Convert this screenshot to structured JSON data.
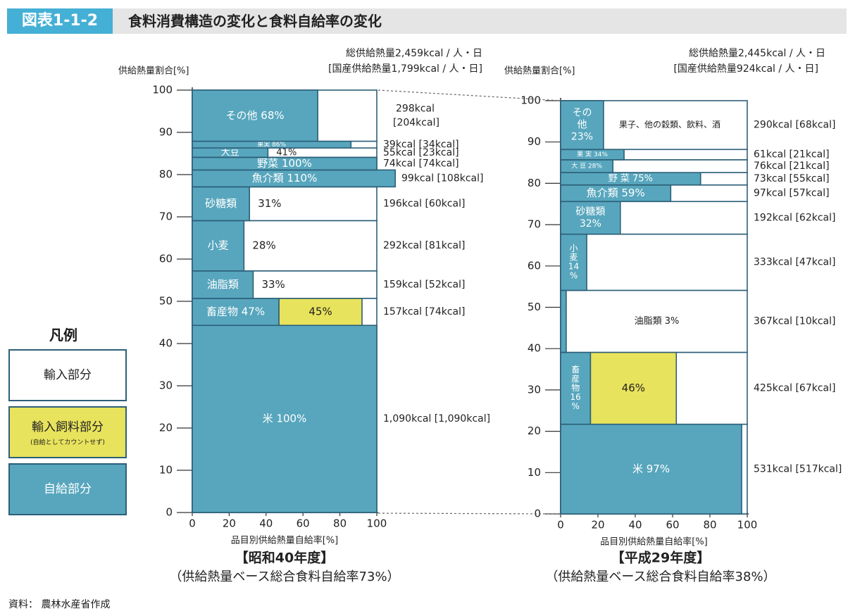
{
  "header": {
    "badge": "図表1-1-2",
    "title": "食料消費構造の変化と食料自給率の変化"
  },
  "legend": {
    "title": "凡例",
    "import_label": "輸入部分",
    "feed_label": "輸入飼料部分",
    "feed_note": "(自給としてカウントせず)",
    "self_label": "自給部分"
  },
  "source": "資料： 農林水産省作成",
  "colors": {
    "self": "#57a6bd",
    "feed": "#e8e35c",
    "import": "#ffffff",
    "border": "#2d5f78"
  },
  "chart_data": [
    {
      "type": "marimekko",
      "total_line1": "総供給熱量2,459kcal / 人・日",
      "total_line2": "[国産供給熱量1,799kcal / 人・日]",
      "ylabel": "供給熱量割合[%]",
      "xlabel": "品目別供給熱量自給率[%]",
      "subtitle1": "【昭和40年度】",
      "subtitle2": "（供給熱量ベース総合食料自給率73%）",
      "xlim": [
        0,
        100
      ],
      "ylim": [
        0,
        100
      ],
      "xticks": [
        "0",
        "20",
        "40",
        "60",
        "80",
        "100"
      ],
      "yticks": [
        "0",
        "10",
        "20",
        "30",
        "40",
        "50",
        "60",
        "70",
        "80",
        "90",
        "100"
      ],
      "items": [
        {
          "label": "米 100%",
          "self": 100,
          "feed": 0,
          "y0": 0,
          "y1": 44.3,
          "kcal": "1,090kcal [1,090kcal]",
          "mode": "h"
        },
        {
          "label": "畜産物 47%",
          "self": 47,
          "feed": 45,
          "feed_label": "45%",
          "y0": 44.3,
          "y1": 50.7,
          "kcal": "157kcal [74kcal]",
          "mode": "h"
        },
        {
          "label": "油脂類",
          "pct": "33%",
          "self": 33,
          "feed": 0,
          "y0": 50.7,
          "y1": 57.2,
          "kcal": "159kcal [52kcal]",
          "mode": "h"
        },
        {
          "label": "小麦",
          "pct": "28%",
          "self": 28,
          "feed": 0,
          "y0": 57.2,
          "y1": 69.1,
          "kcal": "292kcal [81kcal]",
          "mode": "h"
        },
        {
          "label": "砂糖類",
          "pct": "31%",
          "self": 31,
          "feed": 0,
          "y0": 69.1,
          "y1": 77.1,
          "kcal": "196kcal [60kcal]",
          "mode": "h"
        },
        {
          "label": "魚介類 110%",
          "self": 110,
          "feed": 0,
          "y0": 77.1,
          "y1": 81.1,
          "kcal": "99kcal [108kcal]",
          "mode": "h"
        },
        {
          "label": "野菜 100%",
          "self": 100,
          "feed": 0,
          "y0": 81.1,
          "y1": 84.1,
          "kcal": "74kcal [74kcal]",
          "mode": "h"
        },
        {
          "label": "大豆",
          "pct": "41%",
          "self": 41,
          "feed": 0,
          "y0": 84.1,
          "y1": 86.3,
          "kcal": "55kcal [23kcal]",
          "mode": "h"
        },
        {
          "label": "果実 86%",
          "self": 86,
          "feed": 0,
          "y0": 86.3,
          "y1": 87.9,
          "kcal": "39kcal [34kcal]",
          "mode": "h",
          "small": true
        },
        {
          "label": "その他 68%",
          "self": 68,
          "feed": 0,
          "y0": 87.9,
          "y1": 100,
          "kcal1": "298kcal",
          "kcal2": "[204kcal]",
          "mode": "h"
        }
      ]
    },
    {
      "type": "marimekko",
      "total_line1": "総供給熱量2,445kcal / 人・日",
      "total_line2": "[国産供給熱量924kcal / 人・日]",
      "ylabel": "供給熱量割合[%]",
      "xlabel": "品目別供給熱量自給率[%]",
      "subtitle1": "【平成29年度】",
      "subtitle2": "（供給熱量ベース総合食料自給率38%）",
      "xlim": [
        0,
        100
      ],
      "ylim": [
        0,
        100
      ],
      "xticks": [
        "0",
        "20",
        "40",
        "60",
        "80",
        "100"
      ],
      "yticks": [
        "0",
        "10",
        "20",
        "30",
        "40",
        "50",
        "60",
        "70",
        "80",
        "90",
        "100"
      ],
      "items": [
        {
          "label": "米 97%",
          "self": 97,
          "feed": 0,
          "y0": 0,
          "y1": 21.7,
          "kcal": "531kcal [517kcal]",
          "mode": "h"
        },
        {
          "lines": [
            "畜",
            "産",
            "物",
            "16",
            "%"
          ],
          "self": 16,
          "feed": 46,
          "feed_label": "46%",
          "y0": 21.7,
          "y1": 39.1,
          "kcal": "425kcal [67kcal]",
          "mode": "v"
        },
        {
          "label": "油脂類 3%",
          "self": 3,
          "feed": 0,
          "y0": 39.1,
          "y1": 54.1,
          "kcal": "367kcal [10kcal]",
          "mode": "inimport"
        },
        {
          "lines": [
            "小",
            "麦",
            "14",
            "%"
          ],
          "self": 14,
          "feed": 0,
          "y0": 54.1,
          "y1": 67.7,
          "kcal": "333kcal [47kcal]",
          "mode": "v"
        },
        {
          "lines": [
            "砂糖類",
            "32%"
          ],
          "self": 32,
          "feed": 0,
          "y0": 67.7,
          "y1": 75.6,
          "kcal": "192kcal [62kcal]",
          "mode": "v"
        },
        {
          "label": "魚介類 59%",
          "self": 59,
          "feed": 0,
          "y0": 75.6,
          "y1": 79.6,
          "kcal": "97kcal [57kcal]",
          "mode": "h"
        },
        {
          "label": "野 菜 75%",
          "self": 75,
          "feed": 0,
          "y0": 79.6,
          "y1": 82.6,
          "kcal": "73kcal [55kcal]",
          "mode": "h"
        },
        {
          "label": "大 豆 28%",
          "self": 28,
          "feed": 0,
          "y0": 82.6,
          "y1": 85.7,
          "kcal": "76kcal [21kcal]",
          "mode": "h",
          "small": true
        },
        {
          "label": "果 実 34%",
          "self": 34,
          "feed": 0,
          "y0": 85.7,
          "y1": 88.2,
          "kcal": "61kcal [21kcal]",
          "mode": "h",
          "small": true
        },
        {
          "lines": [
            "その",
            "他",
            "23%"
          ],
          "self": 23,
          "feed": 0,
          "y0": 88.2,
          "y1": 100,
          "kcal": "290kcal [68kcal]",
          "mode": "v",
          "extra": "果子、他の穀類、飲料、酒"
        }
      ]
    }
  ]
}
